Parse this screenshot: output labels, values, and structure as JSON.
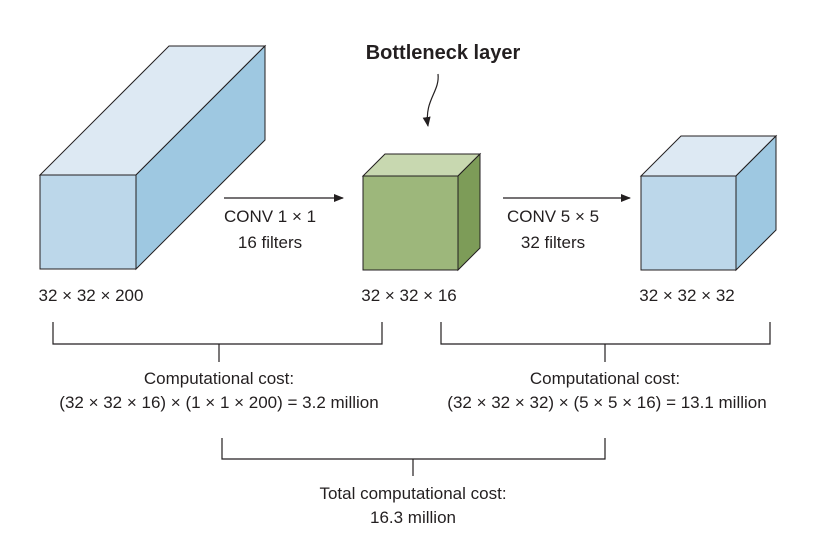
{
  "bottleneck_title": "Bottleneck layer",
  "blocks": {
    "input": {
      "dims": "32 × 32 × 200"
    },
    "bottleneck": {
      "dims": "32 × 32 × 16"
    },
    "output": {
      "dims": "32 × 32 × 32"
    }
  },
  "operations": {
    "conv1": {
      "line1": "CONV 1 × 1",
      "line2": "16 filters"
    },
    "conv5": {
      "line1": "CONV 5 × 5",
      "line2": "32 filters"
    }
  },
  "costs": {
    "first": {
      "title": "Computational cost:",
      "formula": "(32 × 32 × 16) × (1 × 1 × 200) = 3.2 million"
    },
    "second": {
      "title": "Computational cost:",
      "formula": "(32 × 32 × 32) × (5 × 5 × 16) = 13.1 million"
    },
    "total": {
      "title": "Total computational cost:",
      "value": "16.3 million"
    }
  },
  "colors": {
    "input_front": "#bcd7ea",
    "input_top": "#dde9f3",
    "input_side": "#9ec8e1",
    "bottleneck_front": "#9db77b",
    "bottleneck_top": "#c8d8b0",
    "bottleneck_side": "#7d9c58",
    "output_front": "#bcd7ea",
    "output_top": "#dde9f3",
    "output_side": "#9ec8e1",
    "stroke": "#231f20"
  }
}
